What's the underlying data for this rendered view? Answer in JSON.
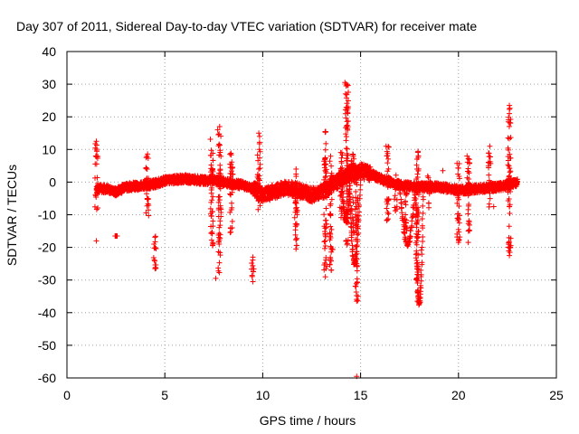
{
  "chart_data": {
    "type": "scatter",
    "title": "Day 307 of 2011, Sidereal Day-to-day VTEC variation (SDTVAR) for receiver mate",
    "xlabel": "GPS time / hours",
    "ylabel": "SDTVAR / TECUs",
    "xlim": [
      0,
      25
    ],
    "ylim": [
      -60,
      40
    ],
    "xticks": [
      0,
      5,
      10,
      15,
      20,
      25
    ],
    "yticks": [
      -60,
      -50,
      -40,
      -30,
      -20,
      -10,
      0,
      10,
      20,
      30,
      40
    ],
    "grid": true,
    "marker": "+",
    "color": "#ff0000",
    "series": [
      {
        "name": "SDTVAR",
        "baseline": [
          [
            1.5,
            -2
          ],
          [
            2.0,
            -2
          ],
          [
            2.5,
            -3
          ],
          [
            3.0,
            -1.5
          ],
          [
            4.0,
            -1
          ],
          [
            4.5,
            -0.5
          ],
          [
            5.0,
            0.5
          ],
          [
            6.0,
            1
          ],
          [
            7.0,
            0.5
          ],
          [
            7.5,
            0.5
          ],
          [
            8.0,
            0
          ],
          [
            9.0,
            -1
          ],
          [
            9.5,
            -2
          ],
          [
            10.0,
            -4
          ],
          [
            10.5,
            -3
          ],
          [
            11.0,
            -2
          ],
          [
            11.5,
            -2
          ],
          [
            12.0,
            -3
          ],
          [
            12.5,
            -4
          ],
          [
            13.0,
            -3
          ],
          [
            13.5,
            -1
          ],
          [
            14.0,
            1
          ],
          [
            14.5,
            3
          ],
          [
            15.0,
            3.5
          ],
          [
            15.5,
            2.5
          ],
          [
            16.0,
            1
          ],
          [
            16.5,
            0
          ],
          [
            17.0,
            -1
          ],
          [
            18.0,
            -1.5
          ],
          [
            19.0,
            -1.5
          ],
          [
            20.0,
            -2.5
          ],
          [
            21.0,
            -2
          ],
          [
            22.0,
            -1.5
          ],
          [
            22.5,
            -1
          ],
          [
            23.0,
            0
          ]
        ],
        "spikes": [
          [
            1.5,
            -9,
            12.5
          ],
          [
            2.5,
            -16.5,
            -16.5
          ],
          [
            4.1,
            -12,
            9
          ],
          [
            4.5,
            -26.5,
            -15
          ],
          [
            7.4,
            -20,
            14
          ],
          [
            7.8,
            -29.5,
            17
          ],
          [
            8.4,
            -16,
            10
          ],
          [
            9.5,
            -30.5,
            -23
          ],
          [
            9.8,
            -9,
            15
          ],
          [
            11.7,
            -20.5,
            5
          ],
          [
            13.2,
            -29,
            15.5
          ],
          [
            13.5,
            -27,
            10
          ],
          [
            14.0,
            -12,
            10
          ],
          [
            14.3,
            -20,
            31
          ],
          [
            14.6,
            -17,
            9
          ],
          [
            14.8,
            -36.5,
            5
          ],
          [
            16.4,
            -13,
            11
          ],
          [
            16.8,
            -9,
            3
          ],
          [
            17.3,
            -19,
            -3
          ],
          [
            17.9,
            -37,
            9.5
          ],
          [
            18.5,
            -9,
            2
          ],
          [
            20.0,
            -18.5,
            6
          ],
          [
            20.5,
            -18.5,
            8
          ],
          [
            21.6,
            -8,
            11
          ],
          [
            22.6,
            -22.5,
            24
          ]
        ],
        "points": [
          [
            14.2,
            30.5
          ],
          [
            14.3,
            22
          ],
          [
            22.6,
            23.5
          ],
          [
            22.6,
            21
          ],
          [
            7.8,
            17
          ],
          [
            7.7,
            16
          ],
          [
            13.2,
            15.5
          ],
          [
            9.8,
            15
          ],
          [
            1.5,
            12.5
          ],
          [
            16.3,
            11
          ],
          [
            21.6,
            11
          ],
          [
            4.5,
            -26.5
          ],
          [
            7.6,
            -29.5
          ],
          [
            9.5,
            -30.5
          ],
          [
            9.5,
            -23
          ],
          [
            13.2,
            -29
          ],
          [
            13.5,
            -27
          ],
          [
            14.8,
            -36.5
          ],
          [
            14.8,
            -25
          ],
          [
            14.8,
            -59.5
          ],
          [
            17.9,
            -36.5
          ],
          [
            17.9,
            -33.5
          ],
          [
            2.5,
            -16.5
          ],
          [
            1.5,
            -18
          ],
          [
            11.7,
            -20.5
          ],
          [
            20.0,
            -18.5
          ],
          [
            20.5,
            -18.5
          ],
          [
            22.6,
            -22.5
          ],
          [
            19.2,
            3.5
          ],
          [
            21.8,
            -7.5
          ]
        ],
        "excursions": [
          [
            17.0,
            17.8,
            -1,
            -19
          ],
          [
            17.8,
            18.2,
            -2,
            -37
          ],
          [
            14.4,
            15.0,
            2,
            -25
          ],
          [
            14.0,
            14.5,
            4,
            -12
          ]
        ]
      }
    ]
  }
}
